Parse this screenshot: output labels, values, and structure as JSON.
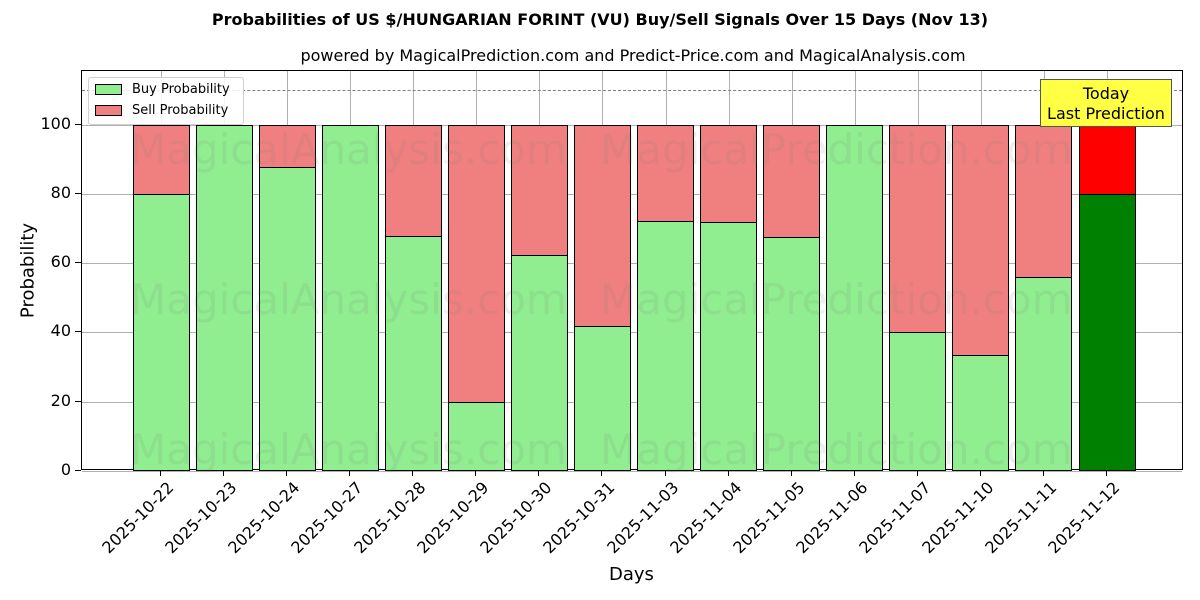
{
  "chart_data": {
    "type": "bar",
    "stacked": true,
    "title": "Probabilities of US $/HUNGARIAN FORINT (VU) Buy/Sell Signals Over 15 Days (Nov 13)",
    "subtitle": "powered by MagicalPrediction.com and Predict-Price.com and MagicalAnalysis.com",
    "xlabel": "Days",
    "ylabel": "Probability",
    "ylim": [
      0,
      115.5
    ],
    "yticks": [
      0,
      20,
      40,
      60,
      80,
      100
    ],
    "grid": true,
    "legend_position": "upper left",
    "reference_line": 110,
    "categories": [
      "2025-10-22",
      "2025-10-23",
      "2025-10-24",
      "2025-10-27",
      "2025-10-28",
      "2025-10-29",
      "2025-10-30",
      "2025-10-31",
      "2025-11-03",
      "2025-11-04",
      "2025-11-05",
      "2025-11-06",
      "2025-11-07",
      "2025-11-10",
      "2025-11-11",
      "2025-11-12"
    ],
    "series": [
      {
        "name": "Buy Probability",
        "color": "#90ee90",
        "values": [
          80,
          100,
          88,
          100,
          68,
          20,
          62.6,
          42.1,
          72.3,
          72.1,
          67.8,
          100,
          40.3,
          33.6,
          56.3,
          80
        ]
      },
      {
        "name": "Sell Probability",
        "color": "#f08080",
        "values": [
          20,
          0,
          12,
          0,
          32,
          80,
          37.4,
          57.9,
          27.7,
          27.9,
          32.2,
          0,
          59.7,
          66.4,
          43.7,
          20
        ]
      }
    ],
    "highlight": {
      "index": 15,
      "buy_color": "#008000",
      "sell_color": "#ff0000",
      "label_line1": "Today",
      "label_line2": "Last Prediction",
      "label_bg": "#ffff44"
    },
    "watermarks": [
      "MagicalAnalysis.com",
      "MagicalPrediction.com"
    ]
  }
}
